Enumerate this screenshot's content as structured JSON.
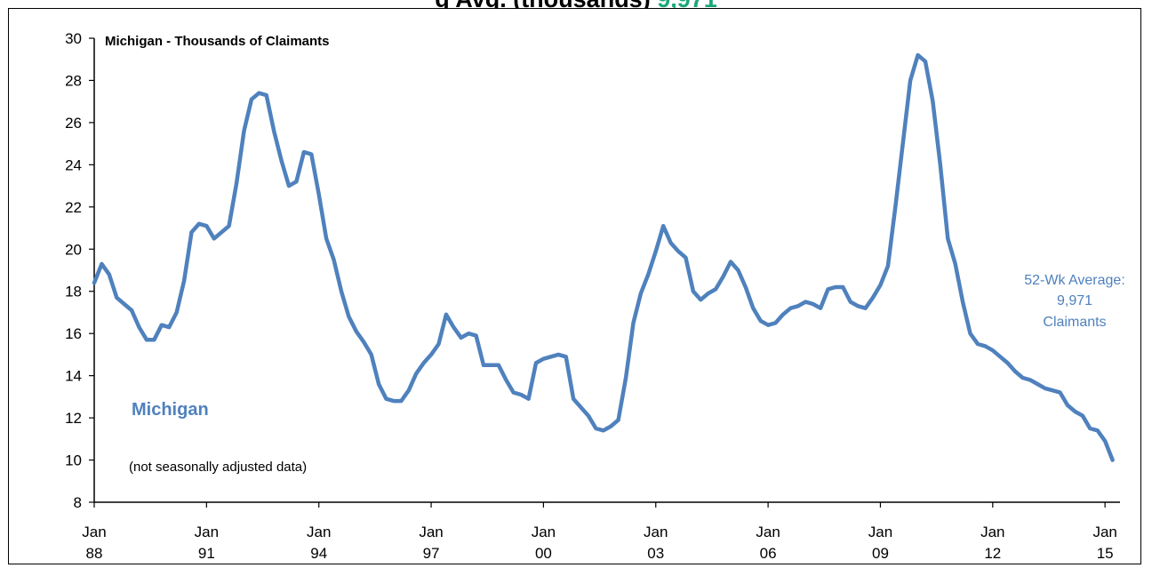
{
  "page_header": {
    "visible_fragment_left": "g Avg. (thousands)",
    "visible_fragment_right": "9,971"
  },
  "chart_data": {
    "type": "line",
    "title": "Michigan - Thousands of Claimants",
    "series_label": "Michigan",
    "note": "(not seasonally adjusted data)",
    "annotation": [
      "52-Wk Average:",
      "9,971",
      "Claimants"
    ],
    "ylim": [
      8,
      30
    ],
    "yticks": [
      8,
      10,
      12,
      14,
      16,
      18,
      20,
      22,
      24,
      26,
      28,
      30
    ],
    "xlim": [
      1988.0,
      2015.4
    ],
    "xticks": [
      {
        "value": 1988,
        "label": [
          "Jan",
          "88"
        ]
      },
      {
        "value": 1991,
        "label": [
          "Jan",
          "91"
        ]
      },
      {
        "value": 1994,
        "label": [
          "Jan",
          "94"
        ]
      },
      {
        "value": 1997,
        "label": [
          "Jan",
          "97"
        ]
      },
      {
        "value": 2000,
        "label": [
          "Jan",
          "00"
        ]
      },
      {
        "value": 2003,
        "label": [
          "Jan",
          "03"
        ]
      },
      {
        "value": 2006,
        "label": [
          "Jan",
          "06"
        ]
      },
      {
        "value": 2009,
        "label": [
          "Jan",
          "09"
        ]
      },
      {
        "value": 2012,
        "label": [
          "Jan",
          "12"
        ]
      },
      {
        "value": 2015,
        "label": [
          "Jan",
          "15"
        ]
      }
    ],
    "series": [
      {
        "name": "Michigan",
        "color": "#4f81bd",
        "x": [
          1988.0,
          1988.2,
          1988.4,
          1988.6,
          1988.8,
          1989.0,
          1989.2,
          1989.4,
          1989.6,
          1989.8,
          1990.0,
          1990.2,
          1990.4,
          1990.6,
          1990.8,
          1991.0,
          1991.2,
          1991.4,
          1991.6,
          1991.8,
          1992.0,
          1992.2,
          1992.4,
          1992.6,
          1992.8,
          1993.0,
          1993.2,
          1993.4,
          1993.6,
          1993.8,
          1994.0,
          1994.2,
          1994.4,
          1994.6,
          1994.8,
          1995.0,
          1995.2,
          1995.4,
          1995.6,
          1995.8,
          1996.0,
          1996.2,
          1996.4,
          1996.6,
          1996.8,
          1997.0,
          1997.2,
          1997.4,
          1997.6,
          1997.8,
          1998.0,
          1998.2,
          1998.4,
          1998.6,
          1998.8,
          1999.0,
          1999.2,
          1999.4,
          1999.6,
          1999.8,
          2000.0,
          2000.2,
          2000.4,
          2000.6,
          2000.8,
          2001.0,
          2001.2,
          2001.4,
          2001.6,
          2001.8,
          2002.0,
          2002.2,
          2002.4,
          2002.6,
          2002.8,
          2003.0,
          2003.2,
          2003.4,
          2003.6,
          2003.8,
          2004.0,
          2004.2,
          2004.4,
          2004.6,
          2004.8,
          2005.0,
          2005.2,
          2005.4,
          2005.6,
          2005.8,
          2006.0,
          2006.2,
          2006.4,
          2006.6,
          2006.8,
          2007.0,
          2007.2,
          2007.4,
          2007.6,
          2007.8,
          2008.0,
          2008.2,
          2008.4,
          2008.6,
          2008.8,
          2009.0,
          2009.2,
          2009.4,
          2009.6,
          2009.8,
          2010.0,
          2010.2,
          2010.4,
          2010.6,
          2010.8,
          2011.0,
          2011.2,
          2011.4,
          2011.6,
          2011.8,
          2012.0,
          2012.2,
          2012.4,
          2012.6,
          2012.8,
          2013.0,
          2013.2,
          2013.4,
          2013.6,
          2013.8,
          2014.0,
          2014.2,
          2014.4,
          2014.6,
          2014.8,
          2015.0,
          2015.2
        ],
        "values": [
          18.4,
          19.3,
          18.8,
          17.7,
          17.4,
          17.1,
          16.3,
          15.7,
          15.7,
          16.4,
          16.3,
          17.0,
          18.5,
          20.8,
          21.2,
          21.1,
          20.5,
          20.8,
          21.1,
          23.1,
          25.6,
          27.1,
          27.4,
          27.3,
          25.6,
          24.2,
          23.0,
          23.2,
          24.6,
          24.5,
          22.6,
          20.5,
          19.5,
          18.0,
          16.8,
          16.1,
          15.6,
          15.0,
          13.6,
          12.9,
          12.8,
          12.8,
          13.3,
          14.1,
          14.6,
          15.0,
          15.5,
          16.9,
          16.3,
          15.8,
          16.0,
          15.9,
          14.5,
          14.5,
          14.5,
          13.8,
          13.2,
          13.1,
          12.9,
          14.6,
          14.8,
          14.9,
          15.0,
          14.9,
          12.9,
          12.5,
          12.1,
          11.5,
          11.4,
          11.6,
          11.9,
          13.9,
          16.5,
          17.9,
          18.8,
          19.9,
          21.1,
          20.3,
          19.9,
          19.6,
          18.0,
          17.6,
          17.9,
          18.1,
          18.7,
          19.4,
          19.0,
          18.2,
          17.2,
          16.6,
          16.4,
          16.5,
          16.9,
          17.2,
          17.3,
          17.5,
          17.4,
          17.2,
          18.1,
          18.2,
          18.2,
          17.5,
          17.3,
          17.2,
          17.7,
          18.3,
          19.2,
          22.0,
          25.0,
          28.0,
          29.2,
          28.9,
          27.0,
          24.0,
          20.5,
          19.3,
          17.5,
          16.0,
          15.5,
          15.4,
          15.2,
          14.9,
          14.6,
          14.2,
          13.9,
          13.8,
          13.6,
          13.4,
          13.3,
          13.2,
          12.6,
          12.3,
          12.1,
          11.5,
          11.4,
          10.9,
          10.0
        ]
      }
    ],
    "grid": false,
    "legend": "none"
  }
}
